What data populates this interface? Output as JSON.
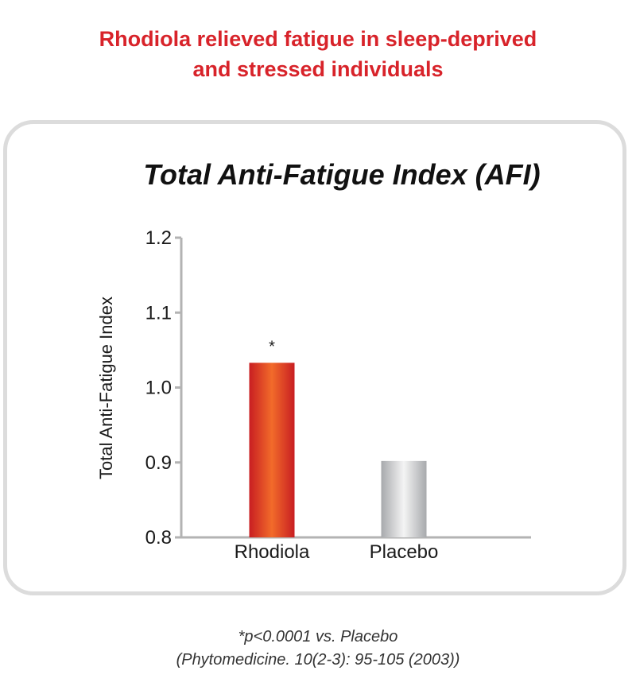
{
  "headline": {
    "line1": "Rhodiola relieved fatigue in sleep-deprived",
    "line2": "and stressed individuals"
  },
  "chart_data": {
    "type": "bar",
    "title": "Total Anti-Fatigue Index (AFI)",
    "ylabel": "Total Anti-Fatigue Index",
    "xlabel": "",
    "categories": [
      "Rhodiola",
      "Placebo"
    ],
    "values": [
      1.033,
      0.902
    ],
    "annotations": [
      "*",
      ""
    ],
    "ylim": [
      0.8,
      1.2
    ],
    "yticks": [
      0.8,
      0.9,
      1.0,
      1.1,
      1.2
    ],
    "ytick_labels": [
      "0.8",
      "0.9",
      "1.0",
      "1.1",
      "1.2"
    ],
    "grid": false,
    "colors": {
      "rhodiola": [
        "#c81e22",
        "#f26b2a",
        "#c81e22"
      ],
      "placebo": [
        "#a7a9ac",
        "#f4f4f4",
        "#a7a9ac"
      ],
      "axis": "#b3b3b3",
      "text": "#1a1a1a"
    }
  },
  "footnote": {
    "line1": "*p<0.0001 vs. Placebo",
    "line2": "(Phytomedicine. 10(2-3): 95-105 (2003))"
  }
}
